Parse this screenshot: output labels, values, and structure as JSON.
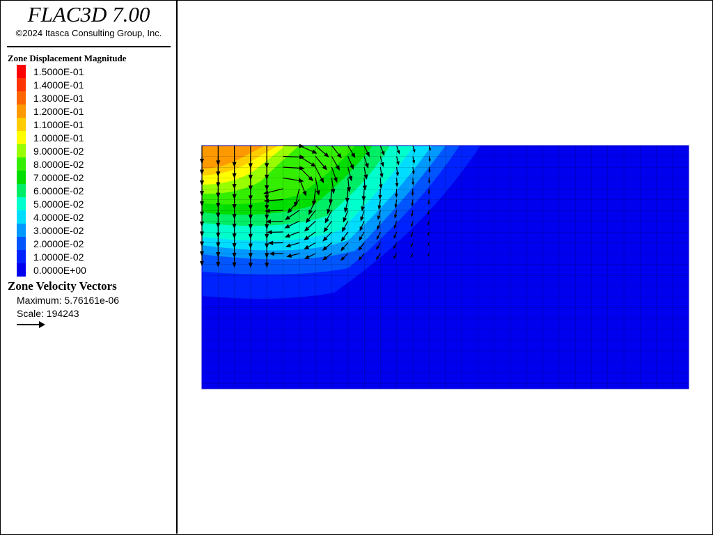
{
  "header": {
    "title": "FLAC3D 7.00",
    "copyright": "©2024 Itasca Consulting Group, Inc."
  },
  "displacement_legend": {
    "title": "Zone Displacement Magnitude",
    "labels": [
      "1.5000E-01",
      "1.4000E-01",
      "1.3000E-01",
      "1.2000E-01",
      "1.1000E-01",
      "1.0000E-01",
      "9.0000E-02",
      "8.0000E-02",
      "7.0000E-02",
      "6.0000E-02",
      "5.0000E-02",
      "4.0000E-02",
      "3.0000E-02",
      "2.0000E-02",
      "1.0000E-02",
      "0.0000E+00"
    ],
    "colors": [
      "#ff0000",
      "#ff3300",
      "#ff6600",
      "#ff9900",
      "#ffcc00",
      "#ffff00",
      "#99ff00",
      "#33ee00",
      "#00dd00",
      "#00ee66",
      "#00ffcc",
      "#00ddff",
      "#0099ff",
      "#0055ff",
      "#0022ff",
      "#0000ee"
    ]
  },
  "velocity_legend": {
    "title": "Zone Velocity Vectors",
    "maximum": "Maximum: 5.76161e-06",
    "scale": "Scale: 194243"
  }
}
